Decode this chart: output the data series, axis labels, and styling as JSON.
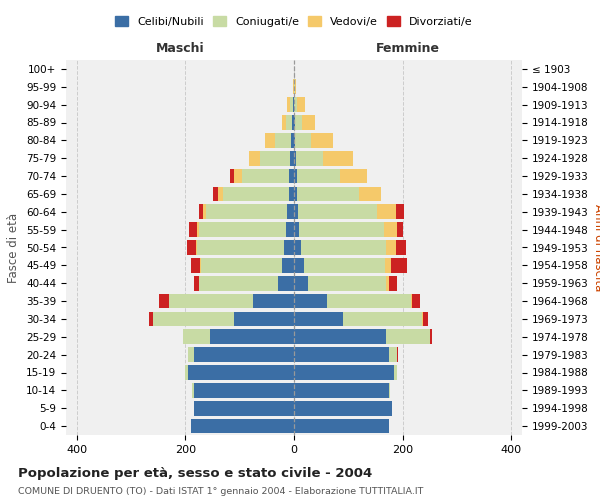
{
  "age_groups": [
    "0-4",
    "5-9",
    "10-14",
    "15-19",
    "20-24",
    "25-29",
    "30-34",
    "35-39",
    "40-44",
    "45-49",
    "50-54",
    "55-59",
    "60-64",
    "65-69",
    "70-74",
    "75-79",
    "80-84",
    "85-89",
    "90-94",
    "95-99",
    "100+"
  ],
  "birth_years": [
    "1999-2003",
    "1994-1998",
    "1989-1993",
    "1984-1988",
    "1979-1983",
    "1974-1978",
    "1969-1973",
    "1964-1968",
    "1959-1963",
    "1954-1958",
    "1949-1953",
    "1944-1948",
    "1939-1943",
    "1934-1938",
    "1929-1933",
    "1924-1928",
    "1919-1923",
    "1914-1918",
    "1909-1913",
    "1904-1908",
    "≤ 1903"
  ],
  "maschi": {
    "celibi": [
      190,
      185,
      185,
      195,
      185,
      155,
      110,
      75,
      30,
      22,
      18,
      15,
      12,
      10,
      10,
      8,
      5,
      3,
      2,
      0,
      0
    ],
    "coniugati": [
      0,
      0,
      2,
      5,
      10,
      50,
      150,
      155,
      145,
      150,
      160,
      160,
      150,
      120,
      85,
      55,
      30,
      12,
      5,
      0,
      0
    ],
    "vedovi": [
      0,
      0,
      0,
      0,
      0,
      0,
      0,
      0,
      0,
      2,
      2,
      3,
      5,
      10,
      15,
      20,
      18,
      8,
      5,
      1,
      0
    ],
    "divorziati": [
      0,
      0,
      0,
      0,
      0,
      0,
      8,
      18,
      10,
      15,
      18,
      15,
      8,
      10,
      8,
      0,
      0,
      0,
      0,
      0,
      0
    ]
  },
  "femmine": {
    "nubili": [
      175,
      180,
      175,
      185,
      175,
      170,
      90,
      60,
      25,
      18,
      12,
      10,
      8,
      5,
      5,
      3,
      2,
      2,
      0,
      0,
      0
    ],
    "coniugate": [
      0,
      0,
      2,
      5,
      15,
      80,
      145,
      155,
      145,
      150,
      158,
      155,
      145,
      115,
      80,
      50,
      30,
      12,
      5,
      1,
      0
    ],
    "vedove": [
      0,
      0,
      0,
      0,
      0,
      0,
      2,
      3,
      5,
      10,
      18,
      25,
      35,
      40,
      50,
      55,
      40,
      25,
      15,
      3,
      0
    ],
    "divorziate": [
      0,
      0,
      0,
      0,
      2,
      5,
      10,
      15,
      15,
      30,
      18,
      10,
      15,
      0,
      0,
      0,
      0,
      0,
      0,
      0,
      0
    ]
  },
  "colors": {
    "celibi_nubili": "#3b6ea5",
    "coniugati": "#c8dba4",
    "vedovi": "#f5c96a",
    "divorziati": "#cc2222"
  },
  "title": "Popolazione per età, sesso e stato civile - 2004",
  "subtitle": "COMUNE DI DRUENTO (TO) - Dati ISTAT 1° gennaio 2004 - Elaborazione TUTTITALIA.IT",
  "xlabel_left": "Maschi",
  "xlabel_right": "Femmine",
  "ylabel_left": "Fasce di età",
  "ylabel_right": "Anni di nascita",
  "xlim": 420,
  "background_color": "#ffffff",
  "grid_color": "#cccccc"
}
